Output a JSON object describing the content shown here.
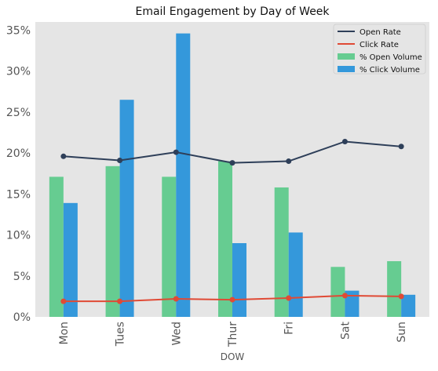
{
  "chart_data": {
    "type": "bar",
    "title": "Email Engagement by Day of Week",
    "xlabel": "DOW",
    "ylabel": "",
    "categories": [
      "Mon",
      "Tues",
      "Wed",
      "Thur",
      "Fri",
      "Sat",
      "Sun"
    ],
    "ylim": [
      0,
      0.36
    ],
    "yticks": [
      0,
      0.05,
      0.1,
      0.15,
      0.2,
      0.25,
      0.3,
      0.35
    ],
    "ytick_labels": [
      "0%",
      "5%",
      "10%",
      "15%",
      "20%",
      "25%",
      "30%",
      "35%"
    ],
    "grid": false,
    "legend_position": "top-right",
    "bars": [
      {
        "name": "% Open Volume",
        "color": "#66cc91",
        "values": [
          0.171,
          0.184,
          0.171,
          0.19,
          0.158,
          0.061,
          0.068
        ]
      },
      {
        "name": "% Click Volume",
        "color": "#3498db",
        "values": [
          0.139,
          0.265,
          0.346,
          0.09,
          0.103,
          0.032,
          0.027
        ]
      }
    ],
    "lines": [
      {
        "name": "Open Rate",
        "color": "#2e3f59",
        "values": [
          0.196,
          0.191,
          0.201,
          0.188,
          0.19,
          0.214,
          0.208
        ]
      },
      {
        "name": "Click Rate",
        "color": "#e04a35",
        "values": [
          0.019,
          0.019,
          0.022,
          0.021,
          0.023,
          0.026,
          0.025
        ]
      }
    ],
    "legend_order": [
      "Open Rate",
      "Click Rate",
      "% Open Volume",
      "% Click Volume"
    ]
  }
}
